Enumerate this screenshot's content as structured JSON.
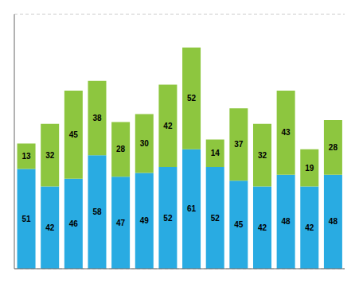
{
  "chart_data": {
    "type": "bar",
    "stacked": true,
    "data_labels": true,
    "grid": true,
    "tick_labels": false,
    "categories": [
      null,
      null,
      null,
      null,
      null,
      null,
      null,
      null,
      null,
      null,
      null,
      null,
      null,
      null
    ],
    "series": [
      {
        "color": "#29ABE2",
        "values": [
          51,
          42,
          46,
          58,
          47,
          49,
          52,
          61,
          52,
          45,
          42,
          48,
          42,
          48
        ]
      },
      {
        "color": "#8DC63F",
        "values": [
          13,
          32,
          45,
          38,
          28,
          30,
          42,
          52,
          14,
          37,
          32,
          43,
          19,
          28
        ]
      }
    ],
    "ylim": [
      0,
      130
    ],
    "yticks": [
      20,
      40,
      60,
      80,
      100,
      120
    ]
  }
}
